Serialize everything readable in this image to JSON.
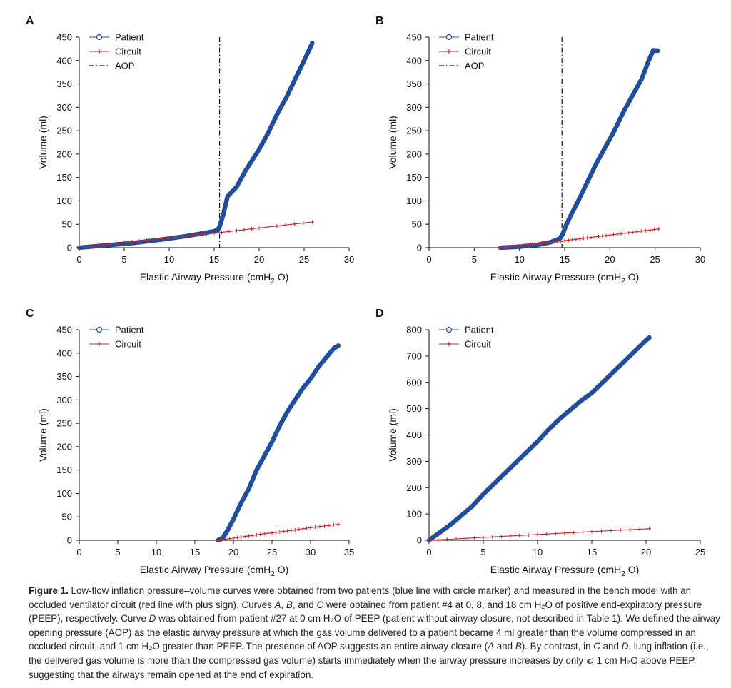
{
  "panels": [
    {
      "letter": "A",
      "chart_data": {
        "type": "scatter",
        "xlabel": "Elastic Airway Pressure (cmH2 O)",
        "ylabel": "Volume (ml)",
        "xlim": [
          0,
          30
        ],
        "ylim": [
          0,
          450
        ],
        "xticks": [
          0,
          5,
          10,
          15,
          20,
          25,
          30
        ],
        "yticks": [
          0,
          50,
          100,
          150,
          200,
          250,
          300,
          350,
          400,
          450
        ],
        "legend": "top-left",
        "series": [
          {
            "name": "Patient",
            "color": "#1f4e9c",
            "marker": "circle",
            "x": [
              0,
              3,
              6,
              9,
              12,
              15,
              15.4,
              15.6,
              16,
              16.5,
              17.5,
              18.5,
              20,
              21,
              22,
              23,
              24,
              25,
              25.9
            ],
            "y": [
              0,
              5,
              10,
              17,
              25,
              35,
              38,
              45,
              70,
              110,
              130,
              165,
              210,
              245,
              285,
              320,
              360,
              400,
              437
            ]
          },
          {
            "name": "Circuit",
            "color": "#d2232a",
            "marker": "plus",
            "x": [
              0,
              5,
              10,
              15,
              20,
              25.9
            ],
            "y": [
              0,
              11,
              21,
              31,
              42,
              55
            ]
          }
        ],
        "vlines": [
          {
            "name": "AOP",
            "x": 15.6,
            "style": "dashdot"
          }
        ]
      }
    },
    {
      "letter": "B",
      "chart_data": {
        "type": "scatter",
        "xlabel": "Elastic Airway Pressure (cmH2 O)",
        "ylabel": "Volume (ml)",
        "xlim": [
          0,
          30
        ],
        "ylim": [
          0,
          450
        ],
        "xticks": [
          0,
          5,
          10,
          15,
          20,
          25,
          30
        ],
        "yticks": [
          0,
          50,
          100,
          150,
          200,
          250,
          300,
          350,
          400,
          450
        ],
        "legend": "top-left",
        "series": [
          {
            "name": "Patient",
            "color": "#1f4e9c",
            "marker": "circle",
            "x": [
              7.9,
              10,
              12,
              13.5,
              14.5,
              14.8,
              15.2,
              15.7,
              16.5,
              17.5,
              18.5,
              19.5,
              20.5,
              21.5,
              22.5,
              23.5,
              24.3,
              24.8,
              25.3
            ],
            "y": [
              0,
              2,
              6,
              12,
              20,
              30,
              50,
              70,
              100,
              140,
              180,
              215,
              250,
              290,
              325,
              360,
              400,
              422,
              421
            ]
          },
          {
            "name": "Circuit",
            "color": "#d2232a",
            "marker": "plus",
            "x": [
              7.9,
              10,
              12.5,
              15,
              17.5,
              20,
              22.5,
              25.4
            ],
            "y": [
              0,
              4,
              10,
              15,
              21,
              27,
              33,
              40
            ]
          }
        ],
        "vlines": [
          {
            "name": "AOP",
            "x": 14.7,
            "style": "dashdot"
          }
        ]
      }
    },
    {
      "letter": "C",
      "chart_data": {
        "type": "scatter",
        "xlabel": "Elastic Airway Pressure (cmH2 O)",
        "ylabel": "Volume (ml)",
        "xlim": [
          0,
          35
        ],
        "ylim": [
          0,
          450
        ],
        "xticks": [
          0,
          5,
          10,
          15,
          20,
          25,
          30,
          35
        ],
        "yticks": [
          0,
          50,
          100,
          150,
          200,
          250,
          300,
          350,
          400,
          450
        ],
        "legend": "top-left",
        "series": [
          {
            "name": "Patient",
            "color": "#1f4e9c",
            "marker": "circle",
            "x": [
              18,
              18.6,
              19.2,
              20,
              21,
              22,
              23,
              24,
              25,
              26,
              27,
              28,
              29,
              30,
              31,
              32,
              33,
              33.6
            ],
            "y": [
              0,
              5,
              20,
              45,
              80,
              110,
              150,
              180,
              210,
              245,
              275,
              300,
              325,
              345,
              370,
              390,
              410,
              416
            ]
          },
          {
            "name": "Circuit",
            "color": "#d2232a",
            "marker": "plus",
            "x": [
              18,
              21,
              24,
              27,
              30,
              33.6
            ],
            "y": [
              0,
              7,
              14,
              20,
              27,
              34
            ]
          }
        ]
      }
    },
    {
      "letter": "D",
      "chart_data": {
        "type": "scatter",
        "xlabel": "Elastic Airway Pressure (cmH2 O)",
        "ylabel": "Volume (ml)",
        "xlim": [
          0,
          25
        ],
        "ylim": [
          0,
          800
        ],
        "xticks": [
          0,
          5,
          10,
          15,
          20,
          25
        ],
        "yticks": [
          0,
          100,
          200,
          300,
          400,
          500,
          600,
          700,
          800
        ],
        "legend": "top-left",
        "series": [
          {
            "name": "Patient",
            "color": "#1f4e9c",
            "marker": "circle",
            "x": [
              0,
              1,
              2,
              3,
              4,
              5,
              6,
              7,
              8,
              9,
              10,
              11,
              12,
              13,
              14,
              15,
              16,
              17,
              18,
              19,
              20,
              20.3
            ],
            "y": [
              0,
              30,
              60,
              95,
              130,
              175,
              215,
              255,
              295,
              335,
              375,
              420,
              460,
              495,
              530,
              560,
              600,
              640,
              680,
              720,
              760,
              770
            ]
          },
          {
            "name": "Circuit",
            "color": "#d2232a",
            "marker": "plus",
            "x": [
              0,
              5,
              10,
              15,
              20.3
            ],
            "y": [
              0,
              11,
              22,
              33,
              44
            ]
          }
        ]
      }
    }
  ],
  "caption": {
    "label": "Figure 1.",
    "t1": " Low-flow inflation pressure–volume curves were obtained from two patients (blue line with circle marker) and measured in the bench model with an occluded ventilator circuit (red line with plus sign). Curves ",
    "a": "A",
    "t2": ", ",
    "b": "B",
    "t3": ", and ",
    "c": "C",
    "t4": " were obtained from patient #4 at 0, 8, and 18 cm H₂O of positive end-expiratory pressure (PEEP), respectively. Curve ",
    "d": "D",
    "t5": " was obtained from patient #27 at 0 cm H₂O of PEEP (patient without airway closure, not described in Table 1). We defined the airway opening pressure (AOP) as the elastic airway pressure at which the gas volume delivered to a patient became 4 ml greater than the volume compressed in an occluded circuit, and 1 cm H₂O greater than PEEP. The presence of AOP suggests an entire airway closure (",
    "a2": "A",
    "t6": " and ",
    "b2": "B",
    "t7": "). By contrast, in ",
    "c2": "C",
    "t8": " and ",
    "d2": "D",
    "t9": ", lung inflation (i.e., the delivered gas volume is more than the compressed gas volume) starts immediately when the airway pressure increases by only ⩽ 1 cm H₂O above PEEP, suggesting that the airways remain opened at the end of expiration."
  }
}
